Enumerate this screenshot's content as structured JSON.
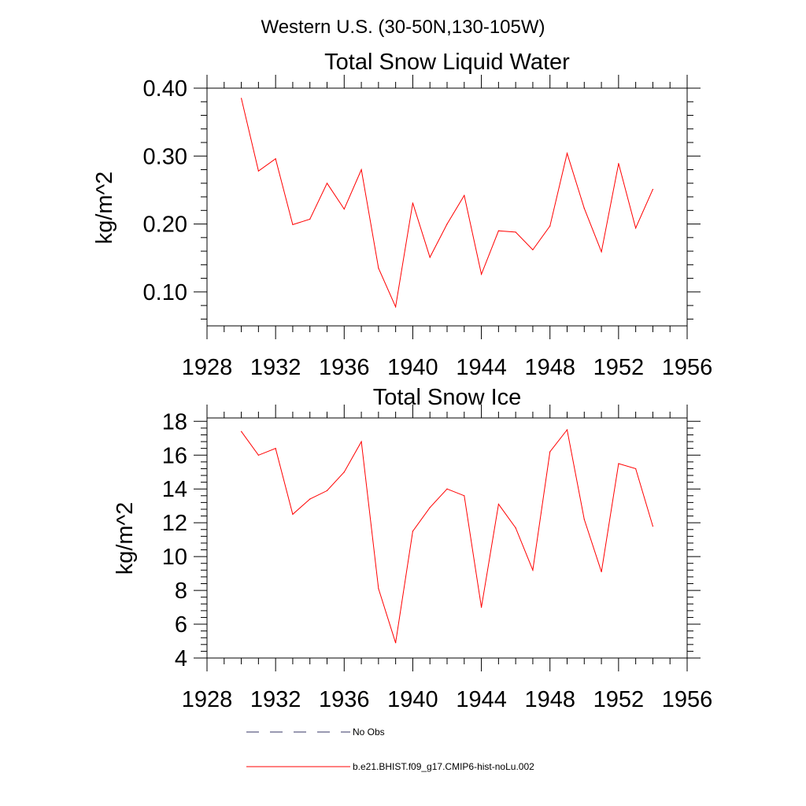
{
  "figure": {
    "suptitle": "Western U.S. (30-50N,130-105W)"
  },
  "chart_data": [
    {
      "type": "line",
      "title": "Total Snow Liquid Water",
      "xlabel": "",
      "ylabel": "kg/m^2",
      "xlim": [
        1928,
        1956
      ],
      "ylim": [
        0.05,
        0.4
      ],
      "x_ticks": [
        1928,
        1932,
        1936,
        1940,
        1944,
        1948,
        1952,
        1956
      ],
      "y_ticks": [
        0.1,
        0.2,
        0.3,
        0.4
      ],
      "y_tick_labels": [
        "0.10",
        "0.20",
        "0.30",
        "0.40"
      ],
      "grid": false,
      "series": [
        {
          "name": "b.e21.BHIST.f09_g17.CMIP6-hist-noLu.002",
          "color": "#ff0000",
          "x": [
            1930,
            1931,
            1932,
            1933,
            1934,
            1935,
            1936,
            1937,
            1938,
            1939,
            1940,
            1941,
            1942,
            1943,
            1944,
            1945,
            1946,
            1947,
            1948,
            1949,
            1950,
            1951,
            1952,
            1953,
            1954
          ],
          "values": [
            0.385,
            0.278,
            0.296,
            0.199,
            0.207,
            0.26,
            0.222,
            0.28,
            0.135,
            0.078,
            0.231,
            0.151,
            0.2,
            0.242,
            0.126,
            0.19,
            0.188,
            0.162,
            0.197,
            0.304,
            0.223,
            0.159,
            0.289,
            0.194,
            0.251
          ]
        }
      ]
    },
    {
      "type": "line",
      "title": "Total Snow Ice",
      "xlabel": "",
      "ylabel": "kg/m^2",
      "xlim": [
        1928,
        1956
      ],
      "ylim": [
        4,
        18.2
      ],
      "x_ticks": [
        1928,
        1932,
        1936,
        1940,
        1944,
        1948,
        1952,
        1956
      ],
      "y_ticks": [
        4,
        6,
        8,
        10,
        12,
        14,
        16,
        18
      ],
      "y_tick_labels": [
        "4",
        "6",
        "8",
        "10",
        "12",
        "14",
        "16",
        "18"
      ],
      "grid": false,
      "series": [
        {
          "name": "b.e21.BHIST.f09_g17.CMIP6-hist-noLu.002",
          "color": "#ff0000",
          "x": [
            1930,
            1931,
            1932,
            1933,
            1934,
            1935,
            1936,
            1937,
            1938,
            1939,
            1940,
            1941,
            1942,
            1943,
            1944,
            1945,
            1946,
            1947,
            1948,
            1949,
            1950,
            1951,
            1952,
            1953,
            1954
          ],
          "values": [
            17.4,
            16.0,
            16.4,
            12.5,
            13.4,
            13.9,
            15.0,
            16.8,
            8.1,
            4.9,
            11.5,
            12.9,
            14.0,
            13.6,
            7.0,
            13.1,
            11.7,
            9.2,
            16.2,
            17.5,
            12.2,
            9.1,
            15.5,
            15.2,
            11.8
          ]
        }
      ]
    }
  ],
  "legend": {
    "placement": "bottom",
    "items": [
      {
        "label": "No Obs",
        "color": "#333366",
        "style": "dashed"
      },
      {
        "label": "b.e21.BHIST.f09_g17.CMIP6-hist-noLu.002",
        "color": "#ff0000",
        "style": "solid"
      }
    ]
  }
}
